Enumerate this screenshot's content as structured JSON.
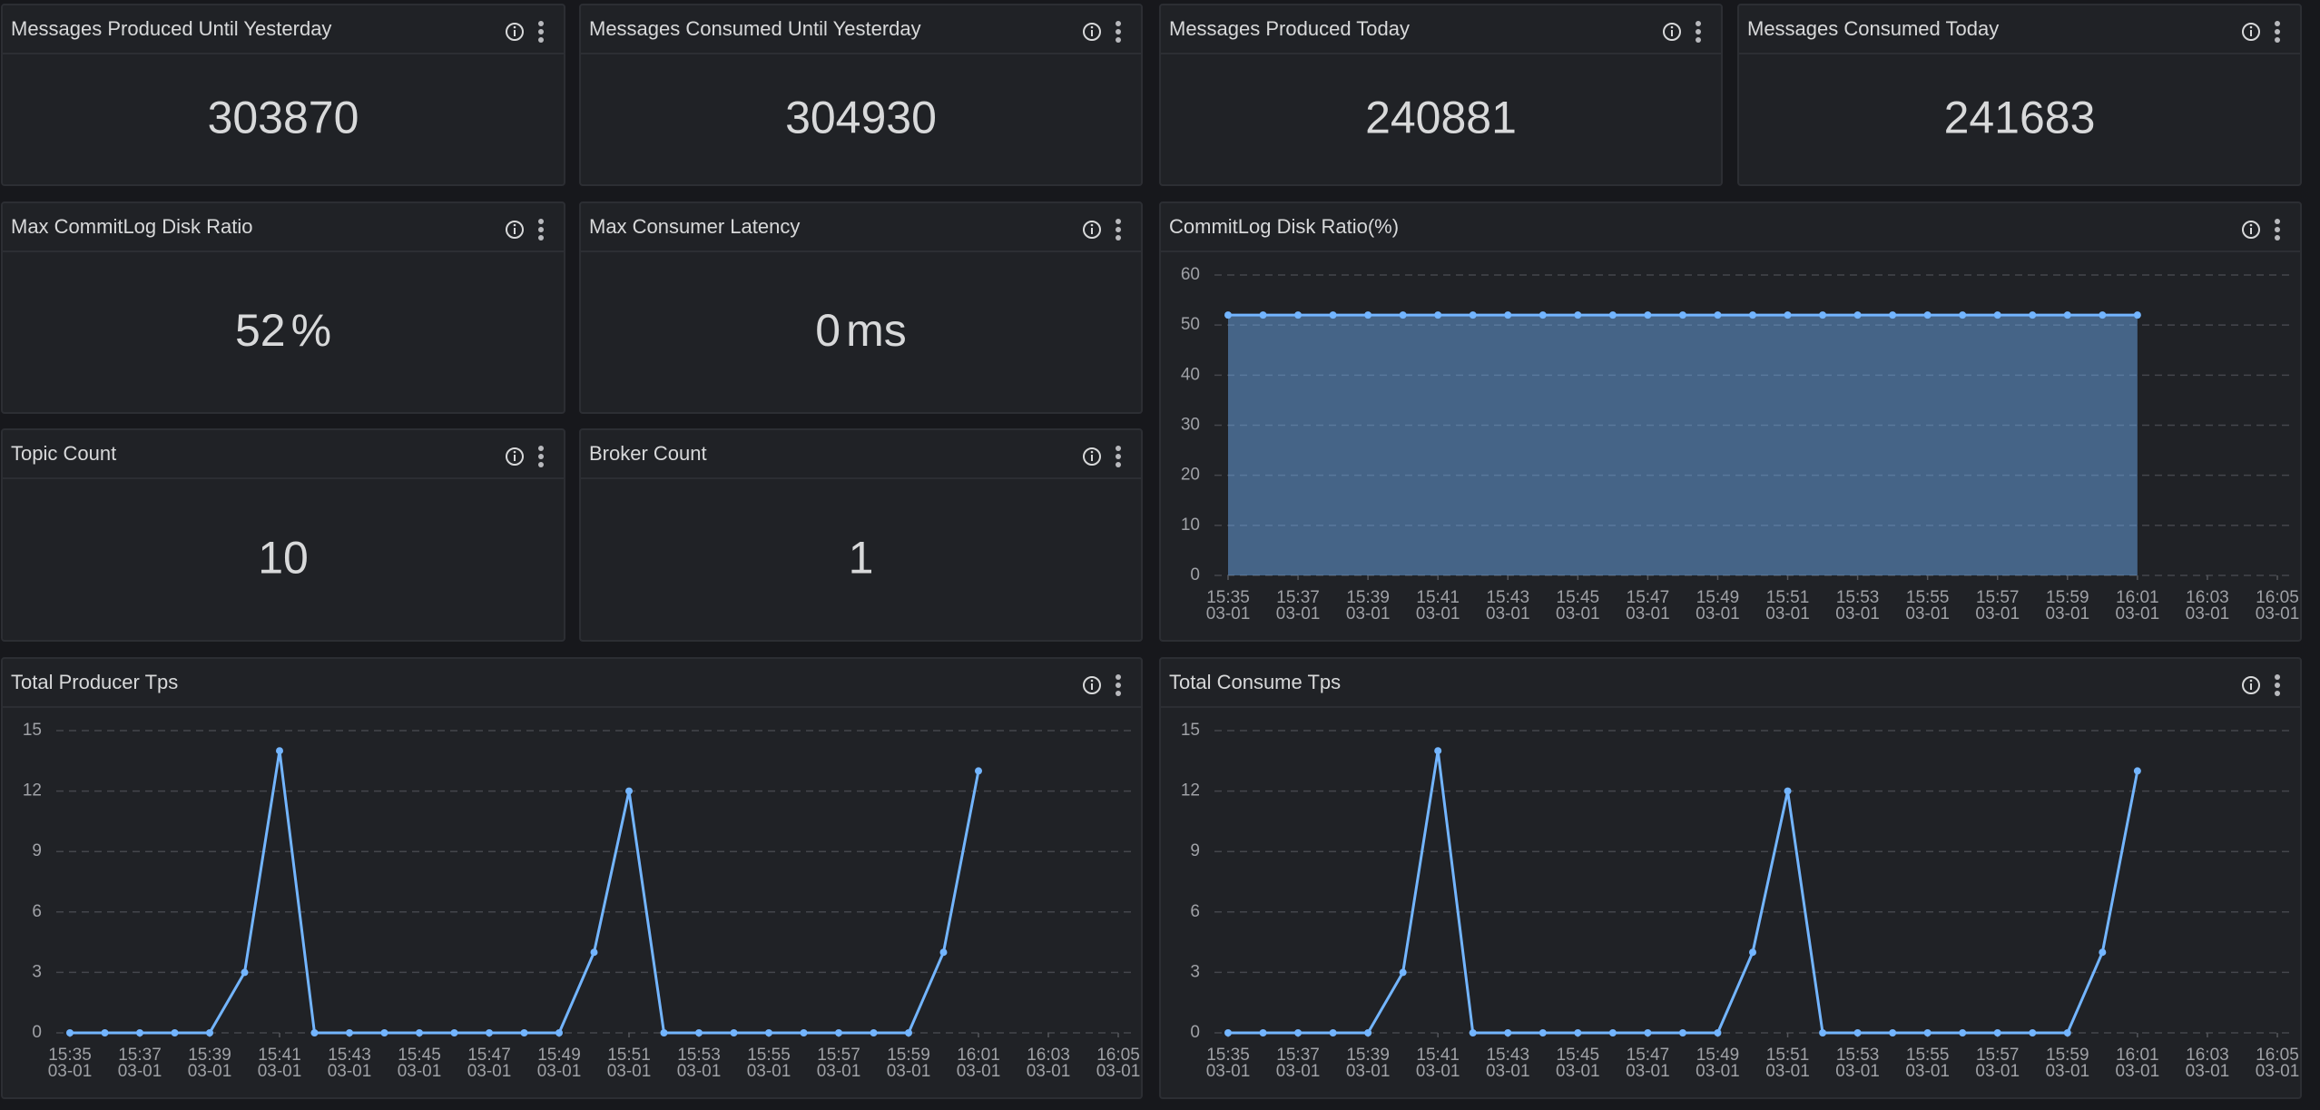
{
  "stats": [
    {
      "title": "Messages Produced Until Yesterday",
      "value": 303870
    },
    {
      "title": "Messages Consumed Until Yesterday",
      "value": 304930
    },
    {
      "title": "Messages Produced Today",
      "value": 240881
    },
    {
      "title": "Messages Consumed Today",
      "value": 241683
    },
    {
      "title": "Max CommitLog Disk Ratio",
      "value": 52,
      "unit": "%"
    },
    {
      "title": "Max Consumer Latency",
      "value": 0,
      "unit": "ms"
    },
    {
      "title": "Topic Count",
      "value": 10
    },
    {
      "title": "Broker Count",
      "value": 1
    }
  ],
  "chart_data": [
    {
      "type": "area",
      "title": "CommitLog Disk Ratio(%)",
      "color": "#73b5ff",
      "grid": true,
      "x": [
        "03-01 15:35",
        "03-01 15:36",
        "03-01 15:37",
        "03-01 15:38",
        "03-01 15:39",
        "03-01 15:40",
        "03-01 15:41",
        "03-01 15:42",
        "03-01 15:43",
        "03-01 15:44",
        "03-01 15:45",
        "03-01 15:46",
        "03-01 15:47",
        "03-01 15:48",
        "03-01 15:49",
        "03-01 15:50",
        "03-01 15:51",
        "03-01 15:52",
        "03-01 15:53",
        "03-01 15:54",
        "03-01 15:55",
        "03-01 15:56",
        "03-01 15:57",
        "03-01 15:58",
        "03-01 15:59",
        "03-01 16:00",
        "03-01 16:01"
      ],
      "values": [
        52,
        52,
        52,
        52,
        52,
        52,
        52,
        52,
        52,
        52,
        52,
        52,
        52,
        52,
        52,
        52,
        52,
        52,
        52,
        52,
        52,
        52,
        52,
        52,
        52,
        52,
        52
      ],
      "xlim": [
        "03-01 15:35",
        "03-01 16:05"
      ],
      "xticks": [
        {
          "value": "03-01 15:35",
          "label": [
            "15:35",
            "03-01"
          ]
        },
        {
          "value": "03-01 15:37",
          "label": [
            "15:37",
            "03-01"
          ]
        },
        {
          "value": "03-01 15:39",
          "label": [
            "15:39",
            "03-01"
          ]
        },
        {
          "value": "03-01 15:41",
          "label": [
            "15:41",
            "03-01"
          ]
        },
        {
          "value": "03-01 15:43",
          "label": [
            "15:43",
            "03-01"
          ]
        },
        {
          "value": "03-01 15:45",
          "label": [
            "15:45",
            "03-01"
          ]
        },
        {
          "value": "03-01 15:47",
          "label": [
            "15:47",
            "03-01"
          ]
        },
        {
          "value": "03-01 15:49",
          "label": [
            "15:49",
            "03-01"
          ]
        },
        {
          "value": "03-01 15:51",
          "label": [
            "15:51",
            "03-01"
          ]
        },
        {
          "value": "03-01 15:53",
          "label": [
            "15:53",
            "03-01"
          ]
        },
        {
          "value": "03-01 15:55",
          "label": [
            "15:55",
            "03-01"
          ]
        },
        {
          "value": "03-01 15:57",
          "label": [
            "15:57",
            "03-01"
          ]
        },
        {
          "value": "03-01 15:59",
          "label": [
            "15:59",
            "03-01"
          ]
        },
        {
          "value": "03-01 16:01",
          "label": [
            "16:01",
            "03-01"
          ]
        },
        {
          "value": "03-01 16:03",
          "label": [
            "16:03",
            "03-01"
          ]
        },
        {
          "value": "03-01 16:05",
          "label": [
            "16:05",
            "03-01"
          ]
        }
      ],
      "ylim": [
        0,
        60
      ],
      "yticks": [
        0,
        10,
        20,
        30,
        40,
        50,
        60
      ]
    },
    {
      "type": "line",
      "title": "Total Producer Tps",
      "color": "#73b5ff",
      "grid": true,
      "x": [
        "03-01 15:35",
        "03-01 15:36",
        "03-01 15:37",
        "03-01 15:38",
        "03-01 15:39",
        "03-01 15:40",
        "03-01 15:41",
        "03-01 15:42",
        "03-01 15:43",
        "03-01 15:44",
        "03-01 15:45",
        "03-01 15:46",
        "03-01 15:47",
        "03-01 15:48",
        "03-01 15:49",
        "03-01 15:50",
        "03-01 15:51",
        "03-01 15:52",
        "03-01 15:53",
        "03-01 15:54",
        "03-01 15:55",
        "03-01 15:56",
        "03-01 15:57",
        "03-01 15:58",
        "03-01 15:59",
        "03-01 16:00",
        "03-01 16:01"
      ],
      "values": [
        0,
        0,
        0,
        0,
        0,
        3,
        14,
        0,
        0,
        0,
        0,
        0,
        0,
        0,
        0,
        4,
        12,
        0,
        0,
        0,
        0,
        0,
        0,
        0,
        0,
        4,
        13
      ],
      "xlim": [
        "03-01 15:35",
        "03-01 16:05"
      ],
      "xticks": [
        {
          "value": "03-01 15:35",
          "label": [
            "15:35",
            "03-01"
          ]
        },
        {
          "value": "03-01 15:37",
          "label": [
            "15:37",
            "03-01"
          ]
        },
        {
          "value": "03-01 15:39",
          "label": [
            "15:39",
            "03-01"
          ]
        },
        {
          "value": "03-01 15:41",
          "label": [
            "15:41",
            "03-01"
          ]
        },
        {
          "value": "03-01 15:43",
          "label": [
            "15:43",
            "03-01"
          ]
        },
        {
          "value": "03-01 15:45",
          "label": [
            "15:45",
            "03-01"
          ]
        },
        {
          "value": "03-01 15:47",
          "label": [
            "15:47",
            "03-01"
          ]
        },
        {
          "value": "03-01 15:49",
          "label": [
            "15:49",
            "03-01"
          ]
        },
        {
          "value": "03-01 15:51",
          "label": [
            "15:51",
            "03-01"
          ]
        },
        {
          "value": "03-01 15:53",
          "label": [
            "15:53",
            "03-01"
          ]
        },
        {
          "value": "03-01 15:55",
          "label": [
            "15:55",
            "03-01"
          ]
        },
        {
          "value": "03-01 15:57",
          "label": [
            "15:57",
            "03-01"
          ]
        },
        {
          "value": "03-01 15:59",
          "label": [
            "15:59",
            "03-01"
          ]
        },
        {
          "value": "03-01 16:01",
          "label": [
            "16:01",
            "03-01"
          ]
        },
        {
          "value": "03-01 16:03",
          "label": [
            "16:03",
            "03-01"
          ]
        },
        {
          "value": "03-01 16:05",
          "label": [
            "16:05",
            "03-01"
          ]
        }
      ],
      "ylim": [
        0,
        15
      ],
      "yticks": [
        0,
        3,
        6,
        9,
        12,
        15
      ]
    },
    {
      "type": "line",
      "title": "Total Consume Tps",
      "color": "#73b5ff",
      "grid": true,
      "x": [
        "03-01 15:35",
        "03-01 15:36",
        "03-01 15:37",
        "03-01 15:38",
        "03-01 15:39",
        "03-01 15:40",
        "03-01 15:41",
        "03-01 15:42",
        "03-01 15:43",
        "03-01 15:44",
        "03-01 15:45",
        "03-01 15:46",
        "03-01 15:47",
        "03-01 15:48",
        "03-01 15:49",
        "03-01 15:50",
        "03-01 15:51",
        "03-01 15:52",
        "03-01 15:53",
        "03-01 15:54",
        "03-01 15:55",
        "03-01 15:56",
        "03-01 15:57",
        "03-01 15:58",
        "03-01 15:59",
        "03-01 16:00",
        "03-01 16:01"
      ],
      "values": [
        0,
        0,
        0,
        0,
        0,
        3,
        14,
        0,
        0,
        0,
        0,
        0,
        0,
        0,
        0,
        4,
        12,
        0,
        0,
        0,
        0,
        0,
        0,
        0,
        0,
        4,
        13
      ],
      "xlim": [
        "03-01 15:35",
        "03-01 16:05"
      ],
      "xticks": [
        {
          "value": "03-01 15:35",
          "label": [
            "15:35",
            "03-01"
          ]
        },
        {
          "value": "03-01 15:37",
          "label": [
            "15:37",
            "03-01"
          ]
        },
        {
          "value": "03-01 15:39",
          "label": [
            "15:39",
            "03-01"
          ]
        },
        {
          "value": "03-01 15:41",
          "label": [
            "15:41",
            "03-01"
          ]
        },
        {
          "value": "03-01 15:43",
          "label": [
            "15:43",
            "03-01"
          ]
        },
        {
          "value": "03-01 15:45",
          "label": [
            "15:45",
            "03-01"
          ]
        },
        {
          "value": "03-01 15:47",
          "label": [
            "15:47",
            "03-01"
          ]
        },
        {
          "value": "03-01 15:49",
          "label": [
            "15:49",
            "03-01"
          ]
        },
        {
          "value": "03-01 15:51",
          "label": [
            "15:51",
            "03-01"
          ]
        },
        {
          "value": "03-01 15:53",
          "label": [
            "15:53",
            "03-01"
          ]
        },
        {
          "value": "03-01 15:55",
          "label": [
            "15:55",
            "03-01"
          ]
        },
        {
          "value": "03-01 15:57",
          "label": [
            "15:57",
            "03-01"
          ]
        },
        {
          "value": "03-01 15:59",
          "label": [
            "15:59",
            "03-01"
          ]
        },
        {
          "value": "03-01 16:01",
          "label": [
            "16:01",
            "03-01"
          ]
        },
        {
          "value": "03-01 16:03",
          "label": [
            "16:03",
            "03-01"
          ]
        },
        {
          "value": "03-01 16:05",
          "label": [
            "16:05",
            "03-01"
          ]
        }
      ],
      "ylim": [
        0,
        15
      ],
      "yticks": [
        0,
        3,
        6,
        9,
        12,
        15
      ]
    }
  ]
}
